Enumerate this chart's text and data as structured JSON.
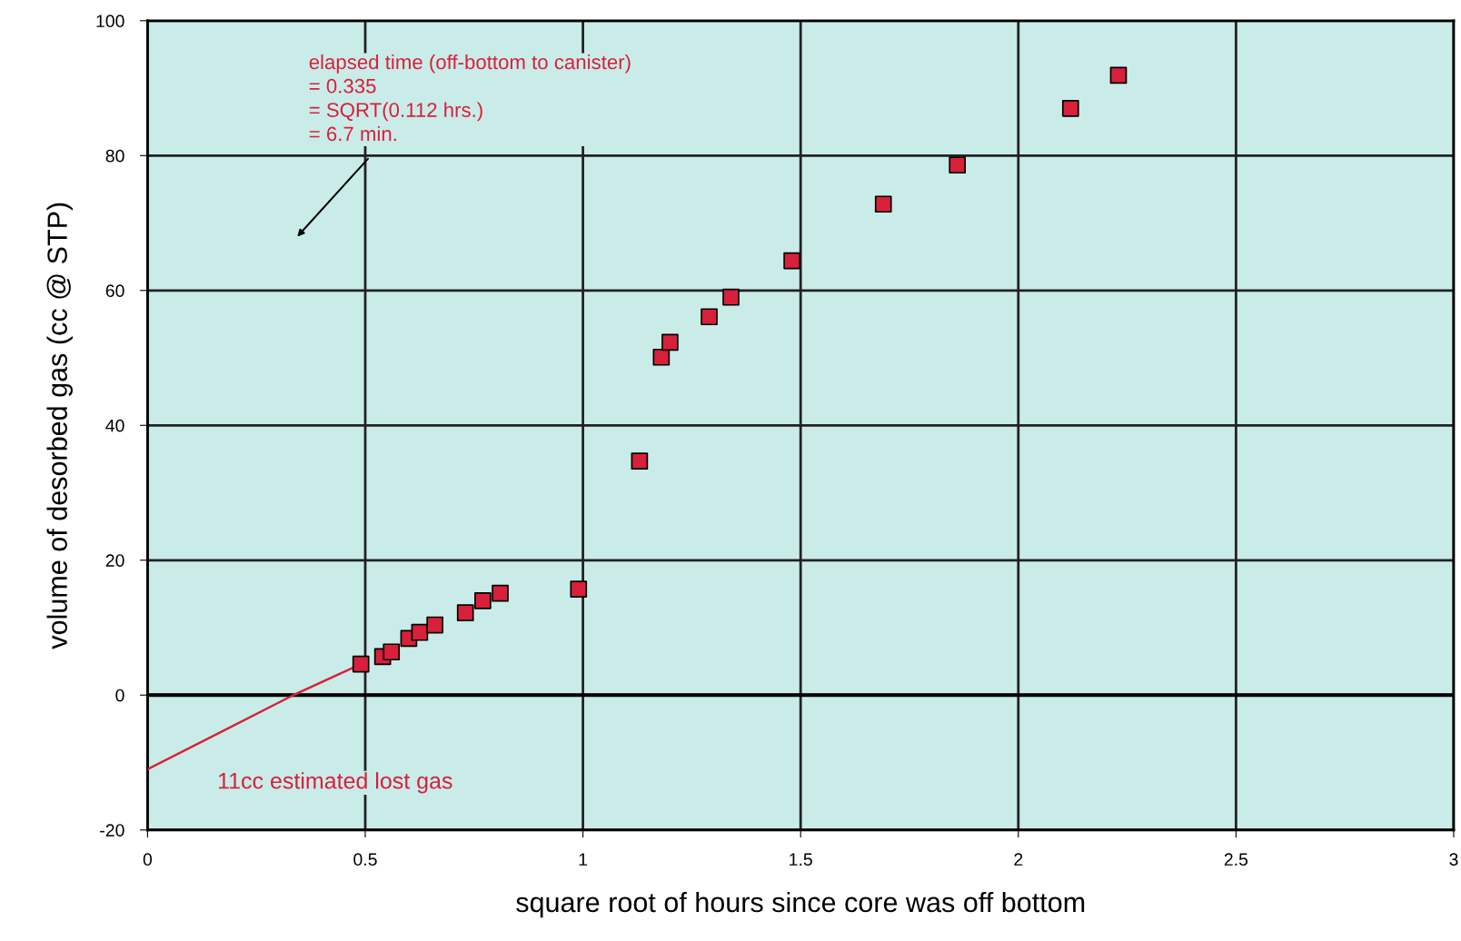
{
  "chart_data": {
    "type": "scatter",
    "xlabel": "square root of hours since core was off bottom",
    "ylabel": "volume of desorbed gas (cc @ STP)",
    "series": [
      {
        "color": "#d8203a",
        "marker": "square",
        "x": [
          0.49,
          0.54,
          0.56,
          0.6,
          0.625,
          0.66,
          0.73,
          0.77,
          0.81,
          0.99,
          1.13,
          1.18,
          1.2,
          1.29,
          1.34,
          1.48,
          1.69,
          1.86,
          2.12,
          2.23
        ],
        "values": [
          4.6,
          5.7,
          6.4,
          8.4,
          9.3,
          10.4,
          12.2,
          14.0,
          15.1,
          15.7,
          34.7,
          50.1,
          52.3,
          56.1,
          59.0,
          64.4,
          72.8,
          78.6,
          87.0,
          91.9
        ]
      },
      {
        "type": "line",
        "color": "#d8203a",
        "marker": "none",
        "line_style": "solid",
        "x": [
          0,
          0.335,
          0.49
        ],
        "values": [
          -11,
          0,
          4.6
        ]
      }
    ],
    "annotations": [
      "elapsed time (off-bottom to canister)\n= 0.335\n= SQRT(0.112 hrs.)\n= 6.7 min.",
      "11cc estimated lost gas"
    ],
    "ref_lines": [
      {
        "axis": "y",
        "value": 0,
        "color": "#000000"
      }
    ],
    "xlim": [
      0,
      3
    ],
    "ylim": [
      -20,
      100
    ],
    "xticks": [
      0,
      0.5,
      1,
      1.5,
      2,
      2.5,
      3
    ],
    "yticks": [
      -20,
      0,
      20,
      40,
      60,
      80,
      100
    ],
    "grid": true,
    "legend": false
  }
}
